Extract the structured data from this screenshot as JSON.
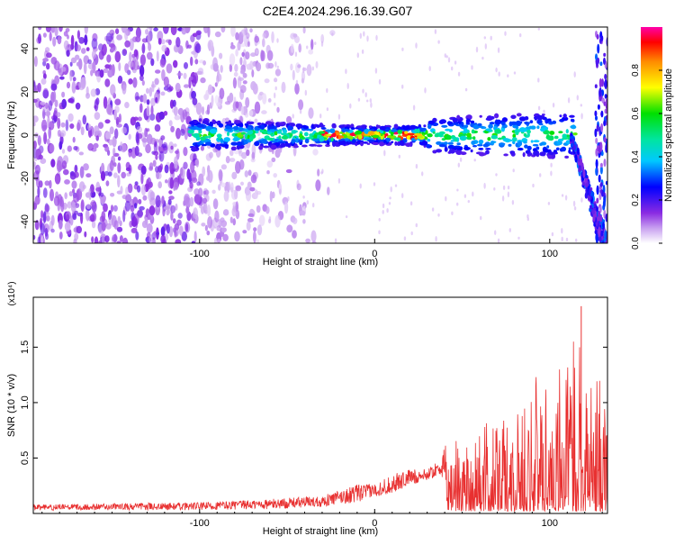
{
  "title": "C2E4.2024.296.16.39.G07",
  "colors": {
    "snr_line": "#e83030",
    "spectrogram_background_noise": "#7a2be0",
    "spectrogram_background": "#ffffff"
  },
  "chart_data": [
    {
      "type": "heatmap",
      "title": "C2E4.2024.296.16.39.G07",
      "xlabel": "Height of straight line (km)",
      "ylabel": "Frequency (Hz)",
      "xlim": [
        -195,
        133
      ],
      "ylim": [
        -50,
        50
      ],
      "x_ticks": [
        -100,
        0,
        100
      ],
      "x_tick_labels": [
        "-100",
        "0",
        "100"
      ],
      "y_ticks": [
        -40,
        -20,
        0,
        20,
        40
      ],
      "y_tick_labels": [
        "-40",
        "-20",
        "0",
        "20",
        "40"
      ],
      "colorbar": {
        "label": "Normalized spectral amplitude",
        "range": [
          0,
          1
        ],
        "ticks": [
          0.0,
          0.2,
          0.4,
          0.6,
          0.8
        ],
        "tick_labels": [
          "0.0",
          "0.2",
          "0.4",
          "0.6",
          "0.8"
        ],
        "colormap": [
          "#ffffff",
          "#8a2be2",
          "#0000ff",
          "#00e5e5",
          "#00e000",
          "#ffff00",
          "#ff8c00",
          "#ff0000",
          "#ff00aa"
        ]
      },
      "features": {
        "signal_band_center_hz": 0,
        "signal_band_x_range_km": [
          -105,
          115
        ],
        "peak_amplitude_x_range_km": [
          -30,
          30
        ],
        "noise_region_x_range_km": [
          -195,
          -100
        ]
      }
    },
    {
      "type": "line",
      "xlabel": "Height of straight line (km)",
      "ylabel": "SNR (10 * v/v)",
      "y_scale_label": "(x10⁴)",
      "xlim": [
        -195,
        133
      ],
      "ylim": [
        0,
        1.95
      ],
      "x_ticks": [
        -100,
        0,
        100
      ],
      "x_tick_labels": [
        "-100",
        "0",
        "100"
      ],
      "y_ticks": [
        0.5,
        1.0,
        1.5
      ],
      "y_tick_labels": [
        "0.5",
        "1.0",
        "1.5"
      ],
      "series": [
        {
          "color": "#e83030",
          "envelope": {
            "x": [
              -195,
              -150,
              -100,
              -60,
              -30,
              -10,
              0,
              10,
              20,
              30,
              38,
              42,
              60,
              80,
              90,
              100,
              110,
              118,
              122,
              130,
              133
            ],
            "ymin": [
              0.03,
              0.03,
              0.03,
              0.04,
              0.06,
              0.1,
              0.15,
              0.18,
              0.25,
              0.3,
              0.35,
              0.02,
              0.02,
              0.02,
              0.02,
              0.02,
              0.02,
              0.02,
              0.02,
              0.02,
              0.02
            ],
            "ymax": [
              0.08,
              0.09,
              0.1,
              0.13,
              0.16,
              0.26,
              0.27,
              0.35,
              0.4,
              0.4,
              0.49,
              0.72,
              0.8,
              0.9,
              1.2,
              1.38,
              1.4,
              1.87,
              1.3,
              1.2,
              1.22
            ]
          }
        }
      ]
    }
  ]
}
